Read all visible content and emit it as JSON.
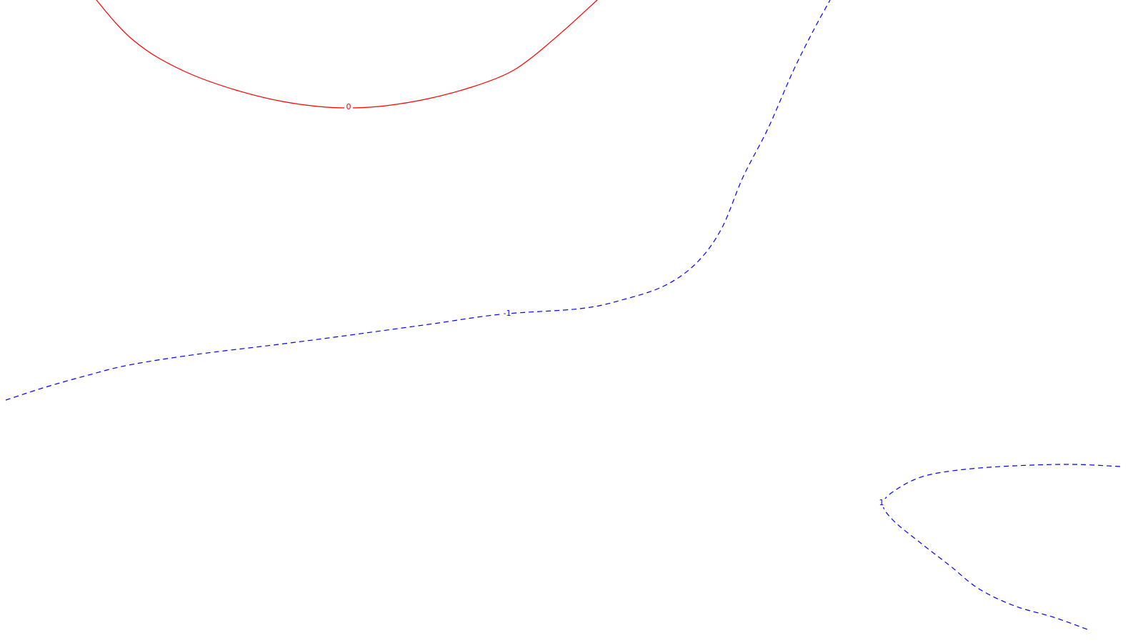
{
  "chart_data": {
    "type": "contour",
    "grid": false,
    "title": "",
    "xlabel": "",
    "ylabel": "",
    "colors": {
      "positive_level": "#ff0000",
      "negative_level": "#0000ff"
    },
    "contours": [
      {
        "level_label": "0",
        "line_style": "solid",
        "color": "#ff0000",
        "points": [
          [
            135,
            0
          ],
          [
            160,
            30
          ],
          [
            185,
            55
          ],
          [
            220,
            80
          ],
          [
            270,
            105
          ],
          [
            330,
            126
          ],
          [
            390,
            141
          ],
          [
            445,
            149
          ],
          [
            490,
            151
          ],
          [
            540,
            148
          ],
          [
            600,
            138
          ],
          [
            660,
            122
          ],
          [
            710,
            103
          ],
          [
            745,
            80
          ],
          [
            790,
            42
          ],
          [
            836,
            0
          ]
        ],
        "label_at": [
          488,
          150
        ]
      },
      {
        "level_label": "-1",
        "line_style": "dashed",
        "color": "#0000ff",
        "points": [
          [
            8,
            560
          ],
          [
            60,
            543
          ],
          [
            120,
            526
          ],
          [
            180,
            511
          ],
          [
            275,
            496
          ],
          [
            390,
            482
          ],
          [
            490,
            469
          ],
          [
            600,
            454
          ],
          [
            700,
            440
          ],
          [
            812,
            432
          ],
          [
            870,
            420
          ],
          [
            930,
            400
          ],
          [
            975,
            368
          ],
          [
            1010,
            320
          ],
          [
            1040,
            248
          ],
          [
            1075,
            180
          ],
          [
            1110,
            100
          ],
          [
            1140,
            40
          ],
          [
            1162,
            0
          ]
        ],
        "label_at": [
          710,
          439
        ]
      },
      {
        "level_label": "1",
        "line_style": "dashed",
        "color": "#0000ff",
        "points": [
          [
            1568,
            653
          ],
          [
            1500,
            650
          ],
          [
            1420,
            652
          ],
          [
            1350,
            657
          ],
          [
            1295,
            666
          ],
          [
            1258,
            683
          ],
          [
            1236,
            704
          ],
          [
            1250,
            728
          ],
          [
            1290,
            761
          ],
          [
            1330,
            792
          ],
          [
            1370,
            824
          ],
          [
            1420,
            848
          ],
          [
            1475,
            864
          ],
          [
            1525,
            882
          ]
        ],
        "label_at": [
          1234,
          704
        ]
      }
    ]
  }
}
